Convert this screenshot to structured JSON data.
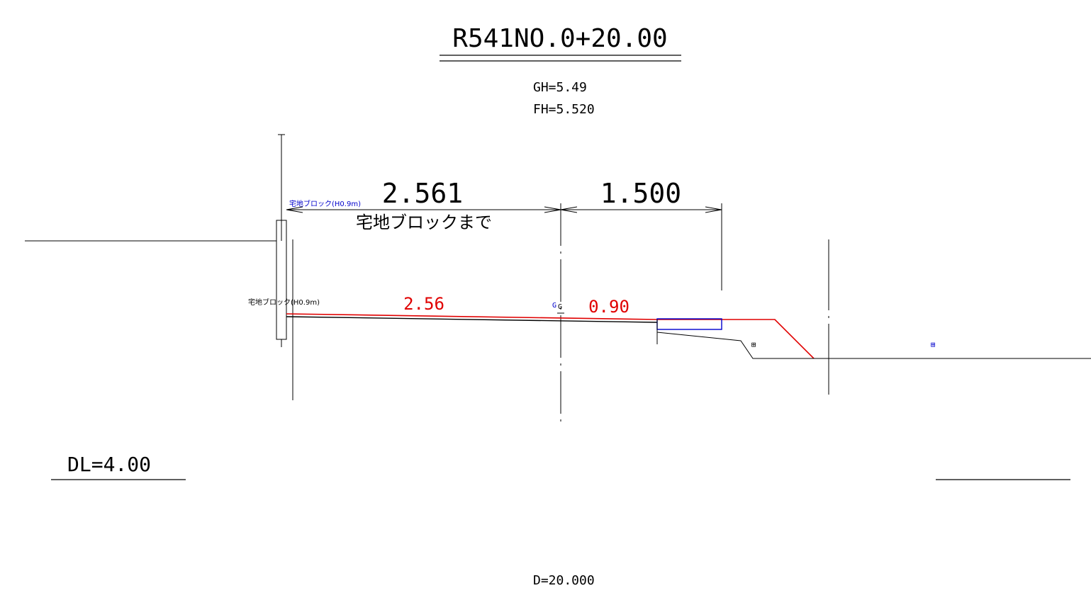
{
  "title": "R541NO.0+20.00",
  "gh_label": "GH=5.49",
  "fh_label": "FH=5.520",
  "dims": {
    "left_value": "2.561",
    "left_note": "宅地ブロックまで",
    "right_value": "1.500"
  },
  "labels": {
    "block_upper": "宅地ブロック(H0.9m)",
    "block_lower": "宅地ブロック(H0.9m)",
    "slope_left": "2.56",
    "slope_right": "0.90",
    "g_blue": "G",
    "g_black": "G",
    "box_symbol_black": "⊞",
    "box_symbol_blue": "⊞"
  },
  "datum_label": "DL=4.00",
  "distance_label": "D=20.000",
  "colors": {
    "line": "#000000",
    "design": "#e00000",
    "blue": "#0000cc"
  }
}
